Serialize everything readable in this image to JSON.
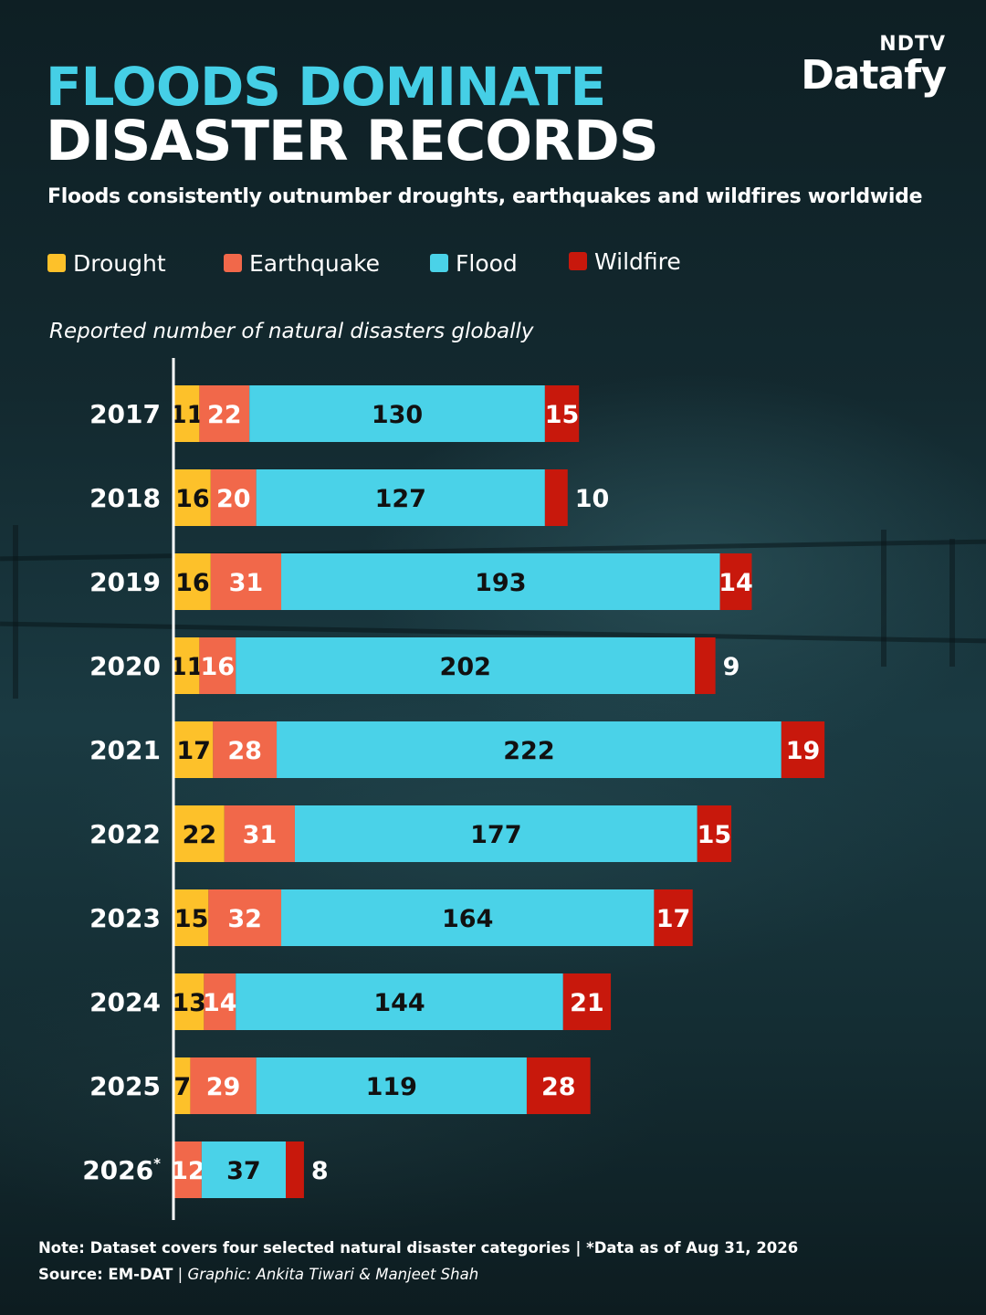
{
  "brand": {
    "top": "NDTV",
    "main": "Datafy"
  },
  "header": {
    "title_line1": "FLOODS DOMINATE",
    "title_line2": "DISASTER RECORDS",
    "subtitle": "Floods consistently outnumber droughts, earthquakes and wildfires worldwide"
  },
  "legend": [
    {
      "label": "Drought",
      "color": "#fdc12a"
    },
    {
      "label": "Earthquake",
      "color": "#f1684a"
    },
    {
      "label": "Flood",
      "color": "#4ad2e8"
    },
    {
      "label": "Wildfire",
      "color": "#c8180c"
    }
  ],
  "axis_caption": "Reported number of natural disasters globally",
  "chart_data": {
    "type": "bar",
    "orientation": "horizontal",
    "stacked": true,
    "categories": [
      "2017",
      "2018",
      "2019",
      "2020",
      "2021",
      "2022",
      "2023",
      "2024",
      "2025",
      "2026"
    ],
    "category_marks": [
      "",
      "",
      "",
      "",
      "",
      "",
      "",
      "",
      "",
      "*"
    ],
    "series": [
      {
        "name": "Drought",
        "color": "#fdc12a",
        "label_color": "#111111",
        "values": [
          11,
          16,
          16,
          11,
          17,
          22,
          15,
          13,
          7,
          0
        ]
      },
      {
        "name": "Earthquake",
        "color": "#f1684a",
        "label_color": "#ffffff",
        "values": [
          22,
          20,
          31,
          16,
          28,
          31,
          32,
          14,
          29,
          12
        ]
      },
      {
        "name": "Flood",
        "color": "#4ad2e8",
        "label_color": "#111111",
        "values": [
          130,
          127,
          193,
          202,
          222,
          177,
          164,
          144,
          119,
          37
        ]
      },
      {
        "name": "Wildfire",
        "color": "#c8180c",
        "label_color": "#ffffff",
        "values": [
          15,
          10,
          14,
          9,
          19,
          15,
          17,
          21,
          28,
          8
        ]
      }
    ],
    "outside_labels": [
      "Wildfire:2018",
      "Wildfire:2020",
      "Wildfire:2026"
    ],
    "xlim": [
      0,
      290
    ],
    "grid": false,
    "legend_position": "top-left"
  },
  "footer": {
    "note": "Note: Dataset covers four selected natural disaster categories | *Data as of Aug 31, 2026",
    "source_label": "Source: EM-DAT",
    "separator": " | ",
    "credit": "Graphic: Ankita Tiwari & Manjeet Shah"
  }
}
